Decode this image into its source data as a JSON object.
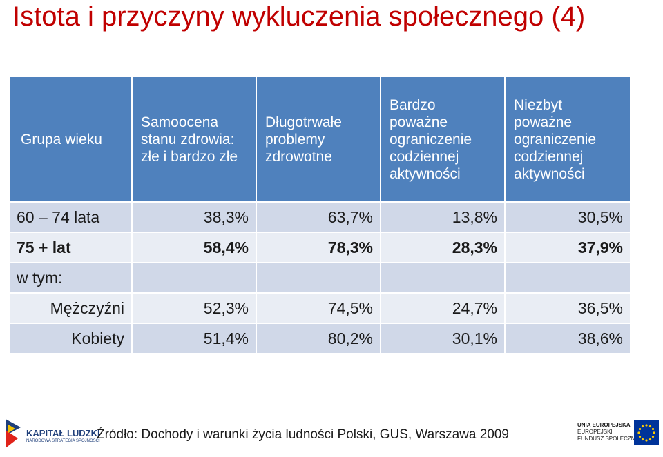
{
  "title": "Istota i przyczyny wykluczenia społecznego (4)",
  "table": {
    "headers": [
      "Grupa wieku",
      "Samoocena stanu zdrowia: złe i bardzo złe",
      "Długotrwałe problemy zdrowotne",
      "Bardzo poważne ograniczenie codziennej aktywności",
      "Niezbyt poważne ograniczenie codziennej aktywności"
    ],
    "rows": [
      {
        "label": "60 – 74 lata",
        "values": [
          "38,3%",
          "63,7%",
          "13,8%",
          "30,5%"
        ]
      },
      {
        "label": "75 + lat",
        "values": [
          "58,4%",
          "78,3%",
          "28,3%",
          "37,9%"
        ]
      },
      {
        "label": "w tym:",
        "values": [
          "",
          "",
          "",
          ""
        ]
      },
      {
        "label": "Mężczyźni",
        "values": [
          "52,3%",
          "74,5%",
          "24,7%",
          "36,5%"
        ]
      },
      {
        "label": "Kobiety",
        "values": [
          "51,4%",
          "80,2%",
          "30,1%",
          "38,6%"
        ]
      }
    ]
  },
  "footer": {
    "source": "Źródło: Dochody i warunki życia ludności Polski, GUS, Warszawa 2009"
  },
  "logos": {
    "left": {
      "line1": "KAPITAŁ LUDZKI",
      "line2": "NARODOWA STRATEGIA SPÓJNOŚCI"
    },
    "right": {
      "line1": "UNIA EUROPEJSKA",
      "line2": "EUROPEJSKI",
      "line3": "FUNDUSZ SPOŁECZNY"
    }
  },
  "colors": {
    "title": "#c00000",
    "header_bg": "#4f81bd",
    "row_odd": "#d0d8e8",
    "row_even": "#e9edf4"
  }
}
